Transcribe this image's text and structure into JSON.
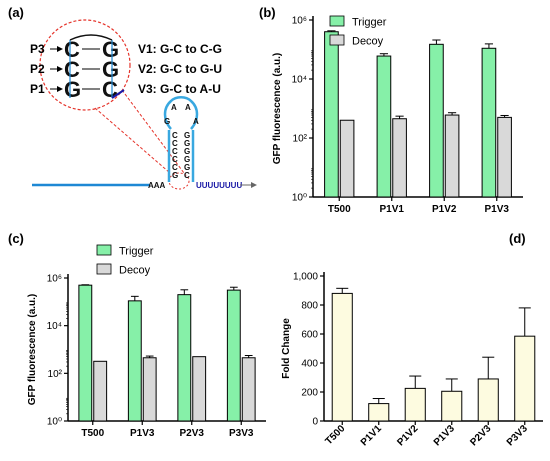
{
  "panel_labels": {
    "a": "(a)",
    "b": "(b)",
    "c": "(c)",
    "d": "(d)"
  },
  "diagram": {
    "pairs": [
      {
        "label": "P3",
        "left": "C",
        "right": "G"
      },
      {
        "label": "P2",
        "left": "C",
        "right": "G"
      },
      {
        "label": "P1",
        "left": "G",
        "right": "C"
      }
    ],
    "mutations": [
      "V1: G-C to C-G",
      "V2: G-C to G-U",
      "V3: G-C to A-U"
    ],
    "loop": [
      "A",
      "A",
      "G",
      "A"
    ],
    "stem_left": [
      "C",
      "C",
      "C",
      "C",
      "C",
      "G"
    ],
    "stem_right": [
      "G",
      "G",
      "G",
      "G",
      "G",
      "C"
    ],
    "prefix": "AAA",
    "tail": "UUUUUUUU",
    "colors": {
      "line": "#1e88d4",
      "loop": "#39a8e0",
      "circle": "#e5332a",
      "tail": "#1a1aa6"
    }
  },
  "colors": {
    "trigger": "#86f0a8",
    "decoy": "#d9d9d9",
    "fold": "#fdfbe0",
    "axis": "#000000"
  },
  "chart_data": [
    {
      "type": "bar",
      "panel": "b",
      "ylabel": "GFP fluorescence (a.u.)",
      "yscale": "log",
      "ylim": [
        1,
        1000000
      ],
      "yticks": [
        "10⁰",
        "10²",
        "10⁴",
        "10⁶"
      ],
      "categories": [
        "T500",
        "P1V1",
        "P1V2",
        "P1V3"
      ],
      "legend_position": "top-left",
      "series": [
        {
          "name": "Trigger",
          "values": [
            400000,
            60000,
            150000,
            110000
          ],
          "errors": [
            30000,
            12000,
            60000,
            45000
          ]
        },
        {
          "name": "Decoy",
          "values": [
            400,
            450,
            600,
            500
          ],
          "errors": [
            0,
            100,
            120,
            80
          ]
        }
      ]
    },
    {
      "type": "bar",
      "panel": "c",
      "ylabel": "GFP fluorescence (a.u.)",
      "yscale": "log",
      "ylim": [
        1,
        1000000
      ],
      "yticks": [
        "10⁰",
        "10²",
        "10⁴",
        "10⁶"
      ],
      "categories": [
        "T500",
        "P1V3",
        "P2V3",
        "P3V3"
      ],
      "legend_position": "top-left",
      "series": [
        {
          "name": "Trigger",
          "values": [
            500000,
            110000,
            200000,
            310000
          ],
          "errors": [
            20000,
            60000,
            120000,
            100000
          ]
        },
        {
          "name": "Decoy",
          "values": [
            320,
            450,
            500,
            450
          ],
          "errors": [
            0,
            80,
            0,
            110
          ]
        }
      ]
    },
    {
      "type": "bar",
      "panel": "d",
      "ylabel": "Fold Change",
      "yscale": "linear",
      "ylim": [
        0,
        1000
      ],
      "yticks": [
        "0",
        "200",
        "400",
        "600",
        "800",
        "1,000"
      ],
      "categories": [
        "T500",
        "P1V1",
        "P1V2",
        "P1V3",
        "P2V3",
        "P3V3"
      ],
      "series": [
        {
          "values": [
            880,
            120,
            225,
            205,
            290,
            585
          ],
          "errors": [
            35,
            35,
            85,
            85,
            150,
            195
          ]
        }
      ]
    }
  ]
}
